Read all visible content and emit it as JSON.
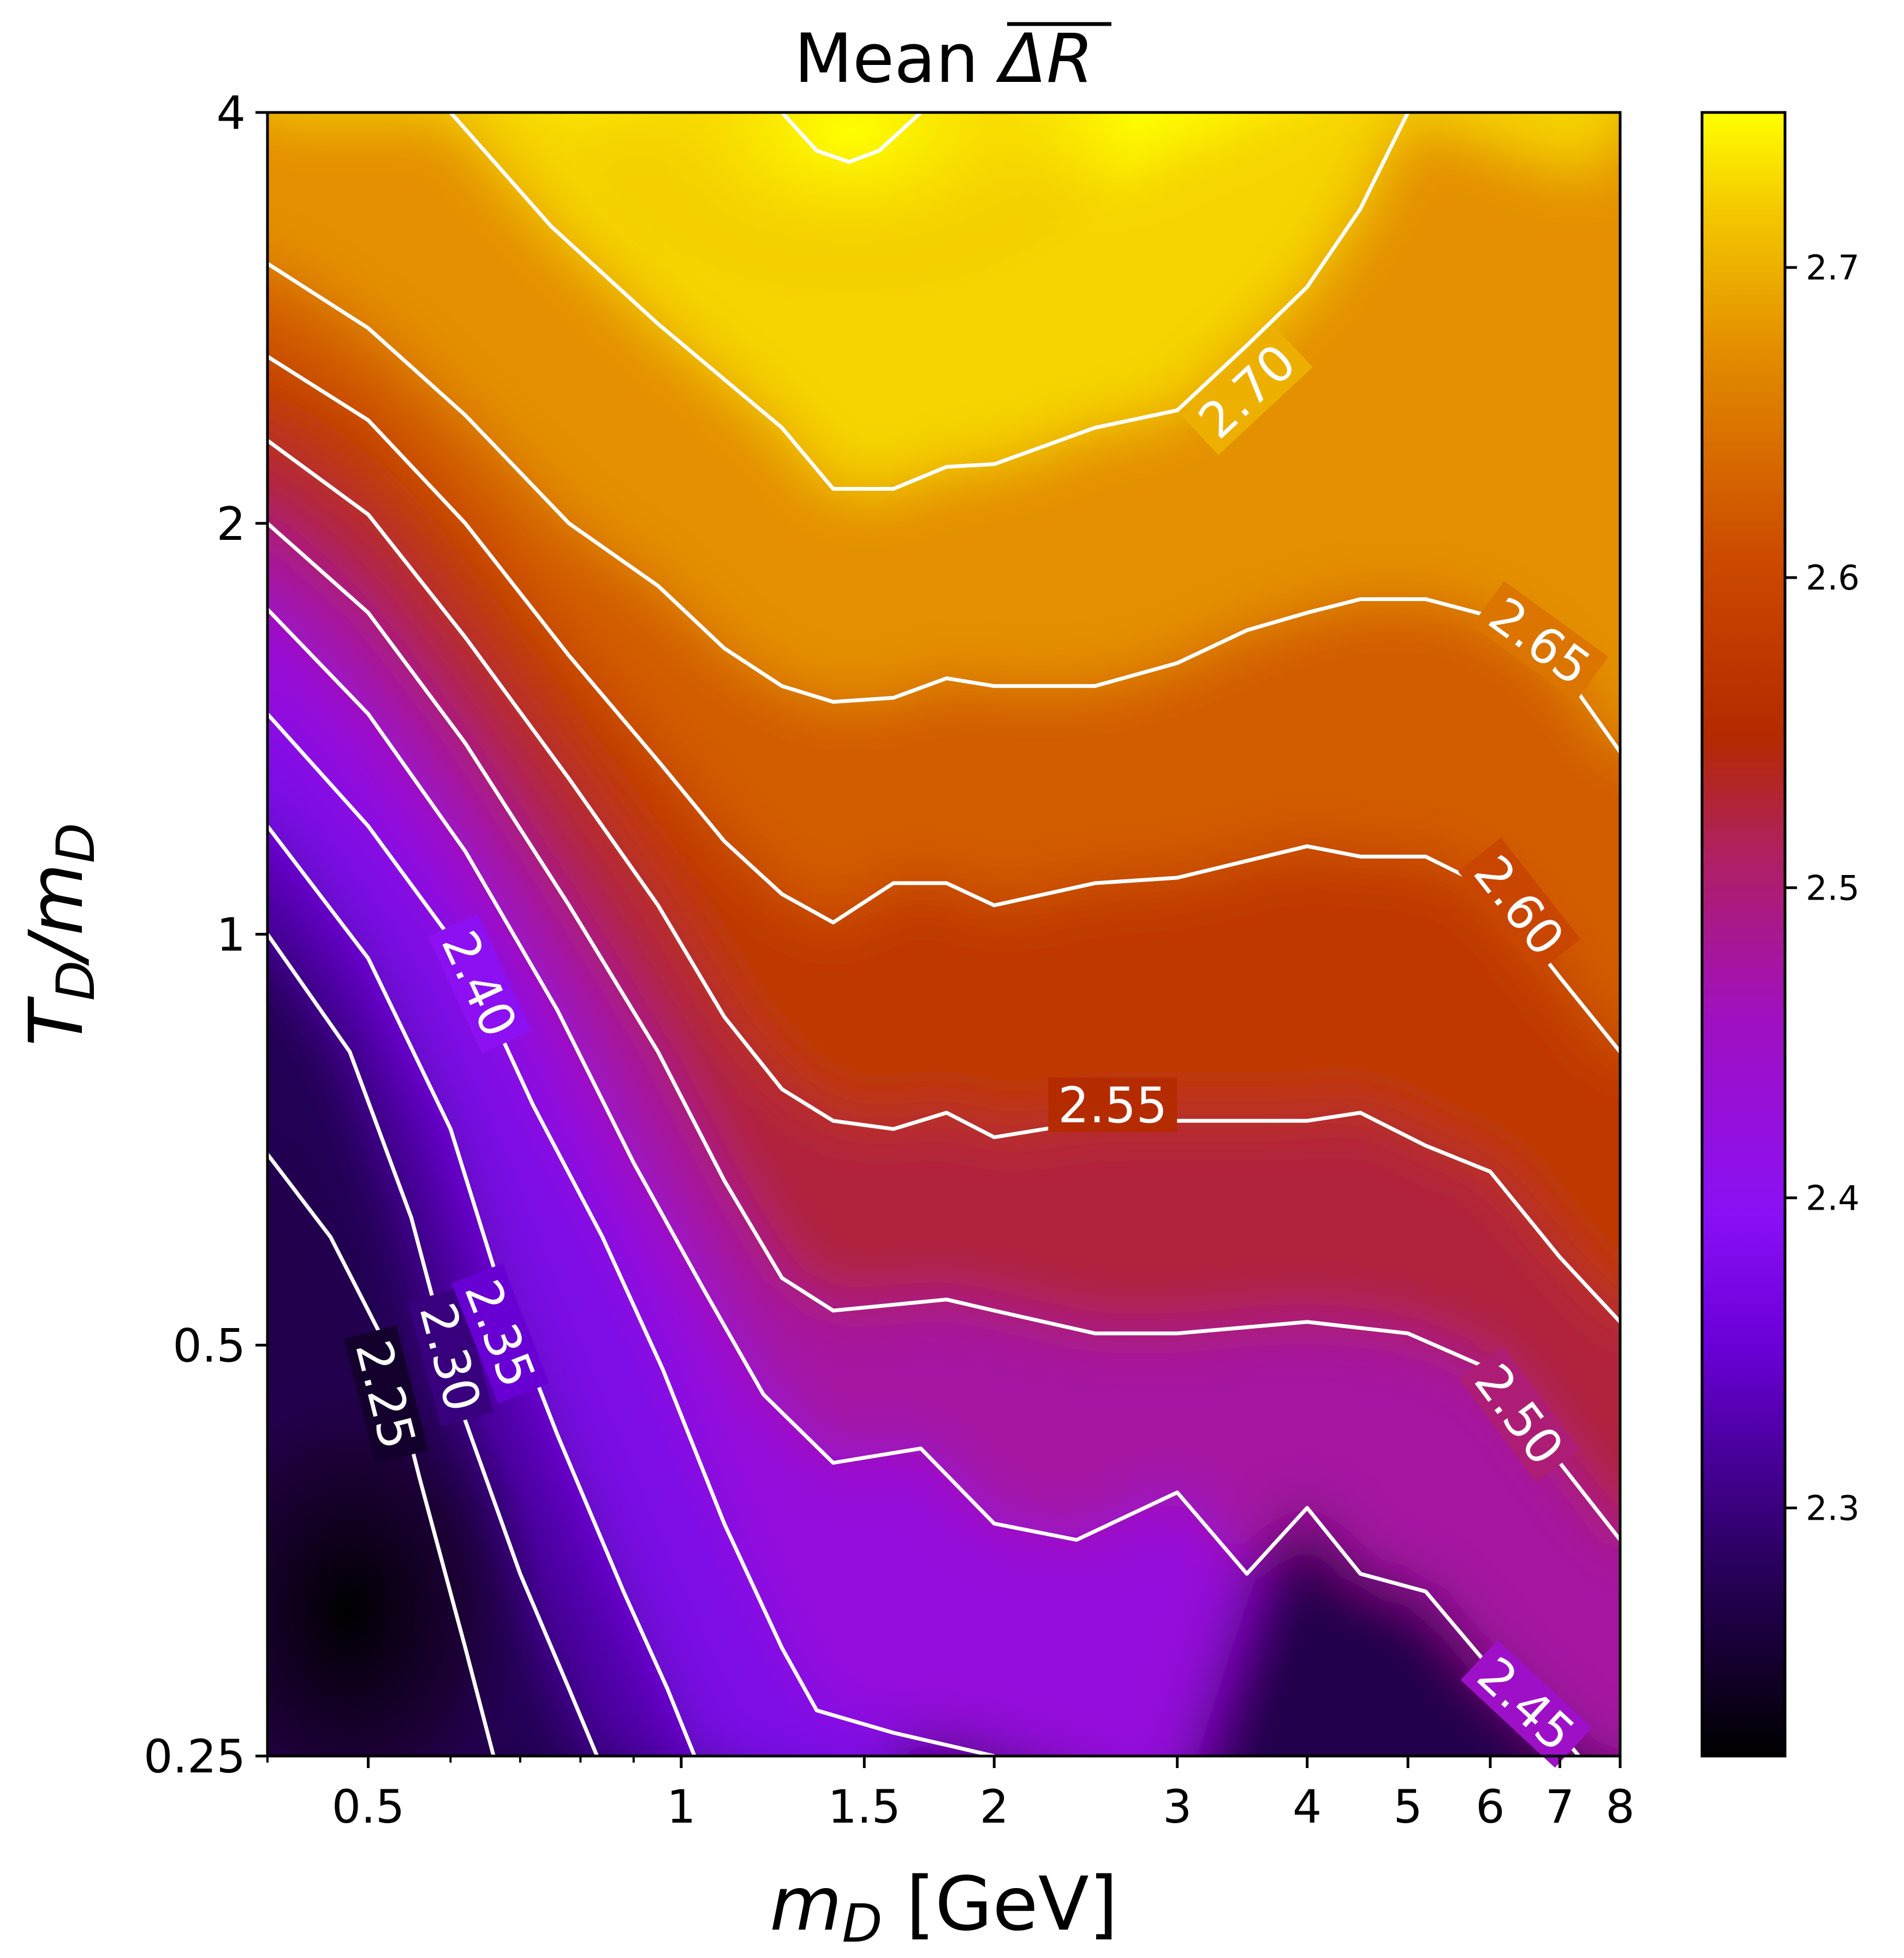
{
  "chart_data": {
    "type": "heatmap",
    "title": "Mean ΔR",
    "title_prefix": "Mean ",
    "title_symbol": "ΔR",
    "xlabel_var": "m",
    "xlabel_sub": "D",
    "xlabel_unit": " [GeV]",
    "ylabel_var": "T",
    "ylabel_sub": "D",
    "ylabel_slash": "/m",
    "ylabel_sub2": "D",
    "x_scale": "log",
    "y_scale": "log",
    "xlim": [
      0.4,
      8
    ],
    "ylim": [
      0.25,
      4
    ],
    "x_ticks": [
      {
        "value": 0.5,
        "label": "0.5"
      },
      {
        "value": 1,
        "label": "1"
      },
      {
        "value": 1.5,
        "label": "1.5"
      },
      {
        "value": 2,
        "label": "2"
      },
      {
        "value": 3,
        "label": "3"
      },
      {
        "value": 4,
        "label": "4"
      },
      {
        "value": 5,
        "label": "5"
      },
      {
        "value": 6,
        "label": "6"
      },
      {
        "value": 7,
        "label": "7"
      },
      {
        "value": 8,
        "label": "8"
      }
    ],
    "y_ticks": [
      {
        "value": 0.25,
        "label": "0.25"
      },
      {
        "value": 0.5,
        "label": "0.5"
      },
      {
        "value": 1,
        "label": "1"
      },
      {
        "value": 2,
        "label": "2"
      },
      {
        "value": 4,
        "label": "4"
      }
    ],
    "colormap": "gnuplot",
    "colorbar": {
      "range": [
        2.22,
        2.75
      ],
      "ticks": [
        {
          "value": 2.3,
          "label": "2.3"
        },
        {
          "value": 2.4,
          "label": "2.4"
        },
        {
          "value": 2.5,
          "label": "2.5"
        },
        {
          "value": 2.6,
          "label": "2.6"
        },
        {
          "value": 2.7,
          "label": "2.7"
        }
      ]
    },
    "contour_color": "#ffffff",
    "contours": [
      {
        "level": 2.25,
        "label": "2.25",
        "label_at": [
          0.52,
          0.46
        ],
        "points": [
          [
            0.4,
            0.69
          ],
          [
            0.46,
            0.6
          ],
          [
            0.52,
            0.5
          ],
          [
            0.56,
            0.4
          ],
          [
            0.62,
            0.3
          ],
          [
            0.66,
            0.25
          ]
        ]
      },
      {
        "level": 2.3,
        "label": "2.30",
        "label_at": [
          0.6,
          0.49
        ],
        "points": [
          [
            0.4,
            1.0
          ],
          [
            0.48,
            0.82
          ],
          [
            0.55,
            0.62
          ],
          [
            0.62,
            0.44
          ],
          [
            0.7,
            0.34
          ],
          [
            0.78,
            0.28
          ],
          [
            0.83,
            0.25
          ]
        ]
      },
      {
        "level": 2.35,
        "label": "2.35",
        "label_at": [
          0.67,
          0.51
        ],
        "points": [
          [
            0.4,
            1.2
          ],
          [
            0.5,
            0.96
          ],
          [
            0.6,
            0.72
          ],
          [
            0.67,
            0.55
          ],
          [
            0.76,
            0.43
          ],
          [
            0.88,
            0.33
          ],
          [
            0.97,
            0.28
          ],
          [
            1.03,
            0.25
          ]
        ]
      },
      {
        "level": 2.4,
        "label": "2.40",
        "label_at": [
          0.64,
          0.92
        ],
        "points": [
          [
            0.4,
            1.45
          ],
          [
            0.5,
            1.2
          ],
          [
            0.62,
            0.96
          ],
          [
            0.72,
            0.75
          ],
          [
            0.84,
            0.6
          ],
          [
            0.96,
            0.48
          ],
          [
            1.1,
            0.37
          ],
          [
            1.25,
            0.3
          ],
          [
            1.35,
            0.27
          ],
          [
            1.6,
            0.26
          ],
          [
            2.0,
            0.25
          ]
        ]
      },
      {
        "level": 2.45,
        "label": "2.45",
        "label_at": [
          6.5,
          0.273
        ],
        "points": [
          [
            0.4,
            1.73
          ],
          [
            0.5,
            1.45
          ],
          [
            0.62,
            1.15
          ],
          [
            0.76,
            0.88
          ],
          [
            0.9,
            0.68
          ],
          [
            1.05,
            0.55
          ],
          [
            1.2,
            0.46
          ],
          [
            1.4,
            0.41
          ],
          [
            1.7,
            0.42
          ],
          [
            2.0,
            0.37
          ],
          [
            2.4,
            0.36
          ],
          [
            3.0,
            0.39
          ],
          [
            3.5,
            0.34
          ],
          [
            4.0,
            0.38
          ],
          [
            4.5,
            0.34
          ],
          [
            5.2,
            0.33
          ],
          [
            6.0,
            0.29
          ],
          [
            7.0,
            0.26
          ],
          [
            7.3,
            0.25
          ]
        ]
      },
      {
        "level": 2.5,
        "label": "2.50",
        "label_at": [
          6.4,
          0.445
        ],
        "points": [
          [
            0.4,
            2.0
          ],
          [
            0.5,
            1.72
          ],
          [
            0.62,
            1.38
          ],
          [
            0.78,
            1.05
          ],
          [
            0.95,
            0.82
          ],
          [
            1.1,
            0.66
          ],
          [
            1.25,
            0.56
          ],
          [
            1.4,
            0.53
          ],
          [
            1.8,
            0.54
          ],
          [
            2.0,
            0.53
          ],
          [
            2.5,
            0.51
          ],
          [
            3.0,
            0.51
          ],
          [
            4.0,
            0.52
          ],
          [
            5.0,
            0.51
          ],
          [
            6.0,
            0.48
          ],
          [
            7.0,
            0.41
          ],
          [
            8.0,
            0.36
          ]
        ]
      },
      {
        "level": 2.55,
        "label": "2.55",
        "label_at": [
          2.6,
          0.75
        ],
        "points": [
          [
            0.4,
            2.3
          ],
          [
            0.5,
            2.03
          ],
          [
            0.62,
            1.65
          ],
          [
            0.78,
            1.3
          ],
          [
            0.95,
            1.05
          ],
          [
            1.1,
            0.87
          ],
          [
            1.25,
            0.77
          ],
          [
            1.4,
            0.73
          ],
          [
            1.6,
            0.72
          ],
          [
            1.8,
            0.74
          ],
          [
            2.0,
            0.71
          ],
          [
            2.5,
            0.73
          ],
          [
            3.0,
            0.73
          ],
          [
            4.0,
            0.73
          ],
          [
            4.5,
            0.74
          ],
          [
            5.2,
            0.7
          ],
          [
            6.0,
            0.67
          ],
          [
            7.0,
            0.58
          ],
          [
            8.0,
            0.52
          ]
        ]
      },
      {
        "level": 2.6,
        "label": "2.60",
        "label_at": [
          6.4,
          1.05
        ],
        "points": [
          [
            0.4,
            2.65
          ],
          [
            0.5,
            2.38
          ],
          [
            0.62,
            2.0
          ],
          [
            0.78,
            1.6
          ],
          [
            0.95,
            1.34
          ],
          [
            1.1,
            1.17
          ],
          [
            1.25,
            1.07
          ],
          [
            1.4,
            1.02
          ],
          [
            1.6,
            1.09
          ],
          [
            1.8,
            1.09
          ],
          [
            2.0,
            1.05
          ],
          [
            2.5,
            1.09
          ],
          [
            3.0,
            1.1
          ],
          [
            4.0,
            1.16
          ],
          [
            4.5,
            1.14
          ],
          [
            5.2,
            1.14
          ],
          [
            6.0,
            1.08
          ],
          [
            7.0,
            0.93
          ],
          [
            8.0,
            0.82
          ]
        ]
      },
      {
        "level": 2.65,
        "label": "2.65",
        "label_at": [
          6.7,
          1.64
        ],
        "points": [
          [
            0.4,
            3.1
          ],
          [
            0.5,
            2.78
          ],
          [
            0.62,
            2.4
          ],
          [
            0.78,
            2.0
          ],
          [
            0.95,
            1.8
          ],
          [
            1.1,
            1.62
          ],
          [
            1.25,
            1.52
          ],
          [
            1.4,
            1.48
          ],
          [
            1.6,
            1.49
          ],
          [
            1.8,
            1.54
          ],
          [
            2.0,
            1.52
          ],
          [
            2.5,
            1.52
          ],
          [
            3.0,
            1.58
          ],
          [
            3.5,
            1.67
          ],
          [
            4.0,
            1.72
          ],
          [
            4.5,
            1.76
          ],
          [
            5.2,
            1.76
          ],
          [
            6.0,
            1.71
          ],
          [
            7.0,
            1.57
          ],
          [
            8.0,
            1.36
          ]
        ]
      },
      {
        "level": 2.7,
        "label": "2.70",
        "label_at": [
          3.5,
          2.5
        ],
        "points": [
          [
            0.6,
            4.0
          ],
          [
            0.75,
            3.3
          ],
          [
            0.95,
            2.8
          ],
          [
            1.1,
            2.55
          ],
          [
            1.25,
            2.35
          ],
          [
            1.4,
            2.12
          ],
          [
            1.6,
            2.12
          ],
          [
            1.8,
            2.2
          ],
          [
            2.0,
            2.21
          ],
          [
            2.5,
            2.35
          ],
          [
            3.0,
            2.42
          ],
          [
            3.5,
            2.7
          ],
          [
            4.0,
            2.98
          ],
          [
            4.5,
            3.4
          ],
          [
            5.0,
            4.0
          ]
        ]
      },
      {
        "level": 2.75,
        "label": "",
        "label_at": null,
        "points": [
          [
            1.25,
            4.0
          ],
          [
            1.35,
            3.75
          ],
          [
            1.45,
            3.68
          ],
          [
            1.55,
            3.75
          ],
          [
            1.7,
            4.0
          ]
        ]
      }
    ]
  }
}
